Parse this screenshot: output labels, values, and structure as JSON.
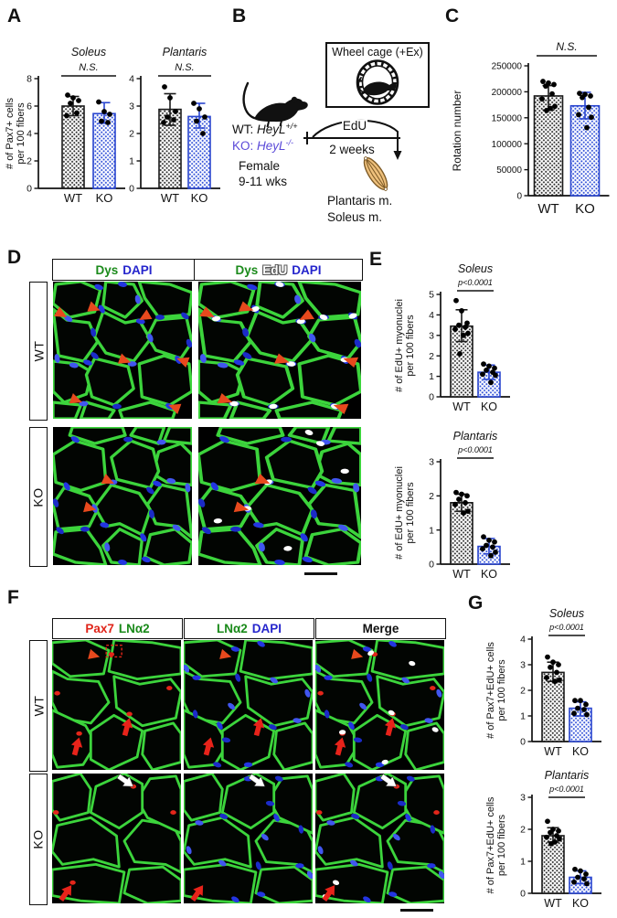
{
  "panels": {
    "A": {
      "label": "A",
      "ylabel_lines": [
        "# of Pax7+ cells",
        "per 100 fibers"
      ]
    },
    "B": {
      "label": "B",
      "box_title": "Wheel cage (+Ex)",
      "wt_prefix": "WT: ",
      "wt_gene": "HeyL",
      "wt_sup": "+/+",
      "ko_prefix": "KO: ",
      "ko_gene": "HeyL",
      "ko_sup": "-/-",
      "ko_color": "#5a49d8",
      "sex": "Female",
      "age": "9-11 wks",
      "edu": "EdU",
      "duration": "2 weeks",
      "muscle1": "Plantaris m.",
      "muscle2": "Soleus m."
    },
    "C": {
      "label": "C",
      "ylabel_lines": [
        "Rotation number"
      ]
    },
    "D": {
      "label": "D",
      "row_labels": [
        "WT",
        "KO"
      ],
      "headers": [
        [
          {
            "t": "Dys",
            "c": "#1a8a1a"
          },
          {
            "t": "DAPI",
            "c": "#2525cc"
          }
        ],
        [
          {
            "t": "Dys",
            "c": "#1a8a1a"
          },
          {
            "t": "EdU",
            "c": "#ffffff",
            "outline": true
          },
          {
            "t": "DAPI",
            "c": "#2525cc"
          }
        ]
      ]
    },
    "E": {
      "label": "E"
    },
    "F": {
      "label": "F",
      "row_labels": [
        "WT",
        "KO"
      ],
      "headers": [
        [
          {
            "t": "Pax7",
            "c": "#e02419"
          },
          {
            "t": "LNα2",
            "c": "#1a8a1a"
          }
        ],
        [
          {
            "t": "LNα2",
            "c": "#1a8a1a"
          },
          {
            "t": "DAPI",
            "c": "#2525cc"
          }
        ],
        [
          {
            "t": "Merge",
            "c": "#111111"
          }
        ]
      ]
    },
    "G": {
      "label": "G"
    }
  },
  "colors": {
    "wt": "#1a1a1a",
    "ko": "#2945cf",
    "point": "#000000",
    "arrow_red": "#e8491d",
    "membrane_green": "#3cd43c",
    "nucleus_blue": "#2335e2"
  },
  "chart_data": [
    {
      "id": "a_soleus",
      "type": "bar",
      "panel": "A",
      "title": "Soleus",
      "sig": "N.S.",
      "ylabel_lines": [
        "# of Pax7+ cells",
        "per 100 fibers"
      ],
      "ylim": [
        0,
        8
      ],
      "yticks": [
        0,
        2,
        4,
        6,
        8
      ],
      "categories": [
        "WT",
        "KO"
      ],
      "series": [
        {
          "name": "WT",
          "style": "wt",
          "mean": 6.0,
          "err": [
            5.3,
            6.7
          ],
          "points": [
            6.8,
            6.6,
            6.4,
            6.2,
            5.5,
            5.3
          ]
        },
        {
          "name": "KO",
          "style": "ko",
          "mean": 5.45,
          "err": [
            4.75,
            6.25
          ],
          "points": [
            6.3,
            5.6,
            5.4,
            4.9,
            4.8
          ]
        }
      ]
    },
    {
      "id": "a_plantaris",
      "type": "bar",
      "panel": "A",
      "title": "Plantaris",
      "sig": "N.S.",
      "ylabel_lines": [],
      "ylim": [
        0,
        4
      ],
      "yticks": [
        0,
        1,
        2,
        3,
        4
      ],
      "categories": [
        "WT",
        "KO"
      ],
      "series": [
        {
          "name": "WT",
          "style": "wt",
          "mean": 2.88,
          "err": [
            2.3,
            3.45
          ],
          "points": [
            3.7,
            3.3,
            2.8,
            2.6,
            2.5,
            2.4
          ]
        },
        {
          "name": "KO",
          "style": "ko",
          "mean": 2.62,
          "err": [
            2.2,
            3.1
          ],
          "points": [
            3.1,
            2.9,
            2.6,
            2.45,
            2.0
          ]
        }
      ]
    },
    {
      "id": "c_rotation",
      "type": "bar",
      "panel": "C",
      "title": "",
      "sig": "N.S.",
      "ylabel_lines": [
        "Rotation number"
      ],
      "ylim": [
        0,
        250000
      ],
      "yticks": [
        0,
        50000,
        100000,
        150000,
        200000,
        250000
      ],
      "categories": [
        "WT",
        "KO"
      ],
      "series": [
        {
          "name": "WT",
          "style": "wt",
          "mean": 192000,
          "err": [
            165000,
            212000
          ],
          "points": [
            220000,
            217000,
            214000,
            211000,
            196000,
            186000,
            172000,
            168000,
            164000
          ]
        },
        {
          "name": "KO",
          "style": "ko",
          "mean": 173000,
          "err": [
            148000,
            199000
          ],
          "points": [
            197000,
            195000,
            192000,
            189000,
            170000,
            156000,
            151000,
            131000
          ]
        }
      ]
    },
    {
      "id": "e_soleus",
      "type": "bar",
      "panel": "E",
      "title": "Soleus",
      "sig": "p<0.0001",
      "ylabel_lines": [
        "# of EdU+ myonuclei",
        "per 100 fibers"
      ],
      "ylim": [
        0,
        5
      ],
      "yticks": [
        0,
        1,
        2,
        3,
        4,
        5
      ],
      "categories": [
        "WT",
        "KO"
      ],
      "series": [
        {
          "name": "WT",
          "style": "wt",
          "mean": 3.45,
          "err": [
            2.7,
            4.25
          ],
          "points": [
            4.7,
            4.2,
            3.6,
            3.5,
            3.4,
            3.3,
            3.1,
            3.0,
            2.1
          ]
        },
        {
          "name": "KO",
          "style": "ko",
          "mean": 1.2,
          "err": [
            0.85,
            1.55
          ],
          "points": [
            1.6,
            1.5,
            1.4,
            1.3,
            1.2,
            1.1,
            1.05,
            0.7
          ]
        }
      ]
    },
    {
      "id": "e_plantaris",
      "type": "bar",
      "panel": "E",
      "title": "Plantaris",
      "sig": "p<0.0001",
      "ylabel_lines": [
        "# of EdU+ myonuclei",
        "per 100 fibers"
      ],
      "ylim": [
        0,
        3
      ],
      "yticks": [
        0,
        1,
        2,
        3
      ],
      "categories": [
        "WT",
        "KO"
      ],
      "series": [
        {
          "name": "WT",
          "style": "wt",
          "mean": 1.8,
          "err": [
            1.55,
            2.05
          ],
          "points": [
            2.1,
            2.05,
            2.0,
            1.9,
            1.8,
            1.75,
            1.55,
            1.5
          ]
        },
        {
          "name": "KO",
          "style": "ko",
          "mean": 0.52,
          "err": [
            0.3,
            0.75
          ],
          "points": [
            0.8,
            0.7,
            0.65,
            0.55,
            0.5,
            0.45,
            0.35,
            0.25
          ]
        }
      ]
    },
    {
      "id": "g_soleus",
      "type": "bar",
      "panel": "G",
      "title": "Soleus",
      "sig": "p<0.0001",
      "ylabel_lines": [
        "# of Pax7+EdU+ cells",
        "per 100 fibers"
      ],
      "ylim": [
        0,
        4
      ],
      "yticks": [
        0,
        1,
        2,
        3,
        4
      ],
      "categories": [
        "WT",
        "KO"
      ],
      "series": [
        {
          "name": "WT",
          "style": "wt",
          "mean": 2.7,
          "err": [
            2.35,
            3.1
          ],
          "points": [
            3.3,
            3.1,
            3.0,
            2.9,
            2.7,
            2.5,
            2.4,
            2.35
          ]
        },
        {
          "name": "KO",
          "style": "ko",
          "mean": 1.3,
          "err": [
            1.0,
            1.55
          ],
          "points": [
            1.6,
            1.6,
            1.45,
            1.3,
            1.25,
            1.1,
            1.05
          ]
        }
      ]
    },
    {
      "id": "g_plantaris",
      "type": "bar",
      "panel": "G",
      "title": "Plantaris",
      "sig": "p<0.0001",
      "ylabel_lines": [
        "# of Pax7+EdU+ cells",
        "per 100 fibers"
      ],
      "ylim": [
        0,
        3
      ],
      "yticks": [
        0,
        1,
        2,
        3
      ],
      "categories": [
        "WT",
        "KO"
      ],
      "series": [
        {
          "name": "WT",
          "style": "wt",
          "mean": 1.8,
          "err": [
            1.6,
            2.05
          ],
          "points": [
            2.25,
            2.0,
            1.95,
            1.9,
            1.8,
            1.75,
            1.7,
            1.6,
            1.55
          ]
        },
        {
          "name": "KO",
          "style": "ko",
          "mean": 0.5,
          "err": [
            0.3,
            0.7
          ],
          "points": [
            0.75,
            0.7,
            0.6,
            0.5,
            0.45,
            0.35,
            0.3
          ]
        }
      ]
    }
  ]
}
